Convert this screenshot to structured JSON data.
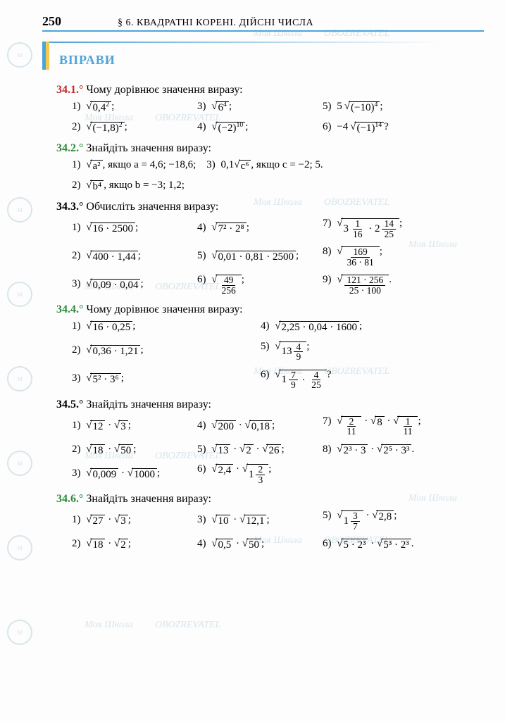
{
  "page_number": "250",
  "chapter": "§ 6. КВАДРАТНІ КОРЕНІ. ДІЙСНІ ЧИСЛА",
  "section_title": "ВПРАВИ",
  "colors": {
    "accent_blue": "#4fa3d8",
    "flag_yellow": "#f6c751",
    "green": "#2e8b3d",
    "red": "#c02a2a",
    "watermark": "#d8e5ea"
  },
  "watermarks": {
    "text1": "Моя Школа",
    "text2": "OBOZREVATEL"
  },
  "problems": [
    {
      "num": "34.1.°",
      "num_color": "red",
      "prompt": "Чому дорівнює значення виразу:",
      "layout": "3col",
      "items": [
        {
          "n": "1)",
          "expr_type": "sqrt_pow",
          "base": "0,4",
          "exp": "2",
          "tail": ";"
        },
        {
          "n": "3)",
          "expr_type": "sqrt_pow",
          "base": "6",
          "exp": "4",
          "tail": ";"
        },
        {
          "n": "5)",
          "coef": "5",
          "expr_type": "sqrt_pow",
          "base": "(−10)",
          "exp": "4",
          "tail": ";"
        },
        {
          "n": "2)",
          "expr_type": "sqrt_pow",
          "base": "(−1,8)",
          "exp": "2",
          "tail": ";"
        },
        {
          "n": "4)",
          "expr_type": "sqrt_pow",
          "base": "(−2)",
          "exp": "10",
          "tail": ";"
        },
        {
          "n": "6)",
          "coef": "−4",
          "expr_type": "sqrt_pow",
          "base": "(−1)",
          "exp": "14",
          "tail": "?"
        }
      ]
    },
    {
      "num": "34.2.°",
      "num_color": "green",
      "prompt": "Знайдіть значення виразу:",
      "layout": "custom2",
      "items": [
        {
          "n": "1)",
          "text_a": "a²",
          "cond": ", якщо a = 4,6; −18,6;",
          "n2": "3)",
          "text_b_pre": "0,1",
          "text_b": "c⁶",
          "cond2": ", якщо c = −2; 5."
        },
        {
          "n": "2)",
          "text_a": "b⁴",
          "cond": ", якщо b = −3; 1,2;"
        }
      ]
    },
    {
      "num": "34.3.°",
      "num_color": "black",
      "prompt": "Обчисліть значення виразу:",
      "layout": "3col_tall",
      "items": [
        {
          "n": "1)",
          "expr": "16 · 2500",
          "sqrt": true,
          "tail": ";"
        },
        {
          "n": "4)",
          "expr": "7² · 2⁸",
          "sqrt": true,
          "tail": ";"
        },
        {
          "n": "7)",
          "expr_type": "sqrt_mixed_prod",
          "a_whole": "3",
          "a_num": "1",
          "a_den": "16",
          "b_whole": "2",
          "b_num": "14",
          "b_den": "25",
          "tail": ";"
        },
        {
          "n": "2)",
          "expr": "400 · 1,44",
          "sqrt": true,
          "tail": ";"
        },
        {
          "n": "5)",
          "expr": "0,01 · 0,81 · 2500",
          "sqrt": true,
          "tail": ";"
        },
        {
          "n": "8)",
          "expr_type": "sqrt_frac",
          "num": "169",
          "den": "36 · 81",
          "tail": ";"
        },
        {
          "n": "3)",
          "expr": "0,09 · 0,04",
          "sqrt": true,
          "tail": ";"
        },
        {
          "n": "6)",
          "expr_type": "sqrt_frac",
          "num": "49",
          "den": "256",
          "tail": ";"
        },
        {
          "n": "9)",
          "expr_type": "sqrt_frac",
          "num": "121 · 256",
          "den": "25 · 100",
          "tail": "."
        }
      ]
    },
    {
      "num": "34.4.°",
      "num_color": "green",
      "prompt": "Чому дорівнює значення виразу:",
      "layout": "2col_tall",
      "items": [
        {
          "n": "1)",
          "expr": "16 · 0,25",
          "sqrt": true,
          "tail": ";"
        },
        {
          "n": "4)",
          "expr": "2,25 · 0,04 · 1600",
          "sqrt": true,
          "tail": ";"
        },
        {
          "n": "2)",
          "expr": "0,36 · 1,21",
          "sqrt": true,
          "tail": ";"
        },
        {
          "n": "5)",
          "expr_type": "sqrt_mixed",
          "whole": "13",
          "num": "4",
          "den": "9",
          "tail": ";"
        },
        {
          "n": "3)",
          "expr": "5² · 3⁶",
          "sqrt": true,
          "tail": ";"
        },
        {
          "n": "6)",
          "expr_type": "sqrt_mixed_prod",
          "a_whole": "1",
          "a_num": "7",
          "a_den": "9",
          "b_num": "4",
          "b_den": "25",
          "tail": "?"
        }
      ]
    },
    {
      "num": "34.5.°",
      "num_color": "black",
      "prompt": "Знайдіть значення виразу:",
      "layout": "3col_mix",
      "items": [
        {
          "n": "1)",
          "expr_type": "prod2",
          "a": "12",
          "b": "3",
          "tail": ";"
        },
        {
          "n": "4)",
          "expr_type": "prod2",
          "a": "200",
          "b": "0,18",
          "tail": ";"
        },
        {
          "n": "7)",
          "expr_type": "prod3frac",
          "a_num": "2",
          "a_den": "11",
          "b": "8",
          "c_num": "1",
          "c_den": "11",
          "tail": ";"
        },
        {
          "n": "2)",
          "expr_type": "prod2",
          "a": "18",
          "b": "50",
          "tail": ";"
        },
        {
          "n": "5)",
          "expr_type": "prod3",
          "a": "13",
          "b": "2",
          "c": "26",
          "tail": ";"
        },
        {
          "n": "8)",
          "expr_type": "prod_exp2",
          "a": "2³ · 3",
          "b": "2⁵ · 3³",
          "tail": "."
        },
        {
          "n": "3)",
          "expr_type": "prod2",
          "a": "0,009",
          "b": "1000",
          "tail": ";"
        },
        {
          "n": "6)",
          "expr_type": "prod_mixed",
          "a": "2,4",
          "b_whole": "1",
          "b_num": "2",
          "b_den": "3",
          "tail": ";"
        }
      ]
    },
    {
      "num": "34.6.°",
      "num_color": "green",
      "prompt": "Знайдіть значення виразу:",
      "layout": "3col_mix",
      "items": [
        {
          "n": "1)",
          "expr_type": "prod2",
          "a": "27",
          "b": "3",
          "tail": ";"
        },
        {
          "n": "3)",
          "expr_type": "prod2",
          "a": "10",
          "b": "12,1",
          "tail": ";"
        },
        {
          "n": "5)",
          "expr_type": "prod_mixed2",
          "a_whole": "1",
          "a_num": "3",
          "a_den": "7",
          "b": "2,8",
          "tail": ";"
        },
        {
          "n": "2)",
          "expr_type": "prod2",
          "a": "18",
          "b": "2",
          "tail": ";"
        },
        {
          "n": "4)",
          "expr_type": "prod2",
          "a": "0,5",
          "b": "50",
          "tail": ";"
        },
        {
          "n": "6)",
          "expr_type": "prod_exp2",
          "a": "5 · 2³",
          "b": "5³ · 2³",
          "tail": "."
        }
      ]
    }
  ]
}
